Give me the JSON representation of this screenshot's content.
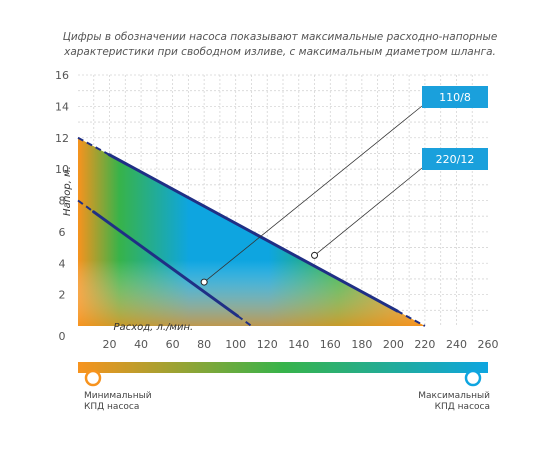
{
  "caption": "Цифры в обозначении насоса показывают максимальные расходно-напорные характеристики при свободном изливе, с максимальным диаметром шланга.",
  "colors": {
    "orange": "#f7931e",
    "green": "#37b34a",
    "blue": "#0ea5e0",
    "navy": "#1f2f85",
    "callout": "#1aa0dc"
  },
  "chart_data": {
    "type": "line",
    "title": "",
    "xlabel": "Расход, л./мин.",
    "ylabel": "Напор, м.",
    "xlim": [
      0,
      260
    ],
    "ylim": [
      0,
      16
    ],
    "xticks": [
      20,
      40,
      60,
      80,
      100,
      120,
      140,
      160,
      180,
      200,
      220,
      240,
      260
    ],
    "yticks": [
      0,
      2,
      4,
      6,
      8,
      10,
      12,
      14,
      16
    ],
    "grid": true,
    "series": [
      {
        "name": "220/12",
        "points": [
          [
            0,
            12
          ],
          [
            220,
            0
          ]
        ],
        "marker": [
          150,
          4.5
        ]
      },
      {
        "name": "110/8",
        "points": [
          [
            0,
            8
          ],
          [
            110,
            0
          ]
        ],
        "marker": [
          80,
          2.8
        ]
      }
    ]
  },
  "efficiency_scale": {
    "min_label": [
      "Минимальный",
      "КПД насоса"
    ],
    "max_label": [
      "Максимальный",
      "КПД насоса"
    ]
  }
}
